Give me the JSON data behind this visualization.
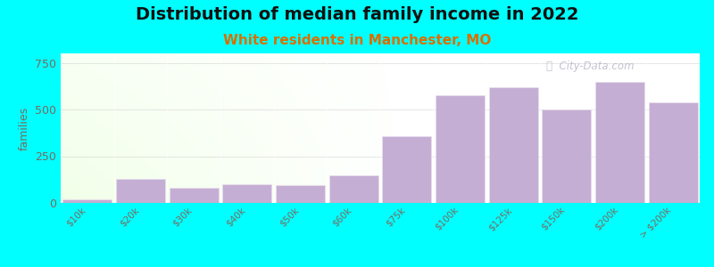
{
  "title": "Distribution of median family income in 2022",
  "subtitle": "White residents in Manchester, MO",
  "categories": [
    "$10k",
    "$20k",
    "$30k",
    "$40k",
    "$50k",
    "$60k",
    "$75k",
    "$100k",
    "$125k",
    "$150k",
    "$200k",
    "> $200k"
  ],
  "values": [
    20,
    130,
    80,
    100,
    95,
    150,
    355,
    575,
    620,
    500,
    650,
    540
  ],
  "bar_color": "#c5aed4",
  "bar_edgecolor": "#e8e0ee",
  "background_color": "#00ffff",
  "title_fontsize": 14,
  "subtitle_fontsize": 11,
  "subtitle_color": "#d97000",
  "ylabel": "families",
  "ylabel_color": "#7a6a60",
  "tick_color": "#7a6a60",
  "ylim": [
    0,
    800
  ],
  "yticks": [
    0,
    250,
    500,
    750
  ],
  "watermark_text": "ⓘ  City-Data.com",
  "watermark_color": "#b8b8c8"
}
